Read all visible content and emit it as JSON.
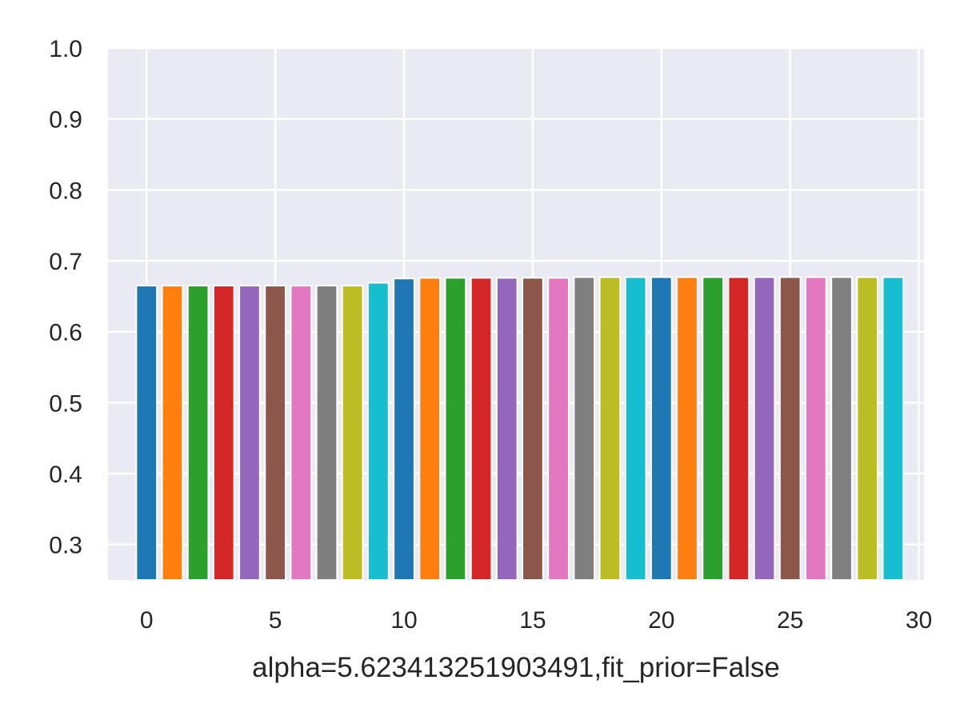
{
  "chart_data": {
    "type": "bar",
    "title": "",
    "xlabel": "alpha=5.623413251903491,fit_prior=False",
    "ylabel": "",
    "x": [
      0,
      1,
      2,
      3,
      4,
      5,
      6,
      7,
      8,
      9,
      10,
      11,
      12,
      13,
      14,
      15,
      16,
      17,
      18,
      19,
      20,
      21,
      22,
      23,
      24,
      25,
      26,
      27,
      28,
      29
    ],
    "values": [
      0.665,
      0.665,
      0.665,
      0.665,
      0.665,
      0.665,
      0.665,
      0.665,
      0.665,
      0.669,
      0.675,
      0.676,
      0.676,
      0.676,
      0.676,
      0.676,
      0.676,
      0.677,
      0.677,
      0.677,
      0.677,
      0.677,
      0.677,
      0.677,
      0.677,
      0.677,
      0.677,
      0.677,
      0.677,
      0.677
    ],
    "xlim": [
      -1.5,
      30.2
    ],
    "ylim": [
      0.25,
      1.0
    ],
    "xticks": [
      0,
      5,
      10,
      15,
      20,
      25,
      30
    ],
    "yticks": [
      0.3,
      0.4,
      0.5,
      0.6,
      0.7,
      0.8,
      0.9,
      1.0
    ],
    "xtick_labels": [
      "0",
      "5",
      "10",
      "15",
      "20",
      "25",
      "30"
    ],
    "ytick_labels": [
      "0.3",
      "0.4",
      "0.5",
      "0.6",
      "0.7",
      "0.8",
      "0.9",
      "1.0"
    ],
    "bar_colors": [
      "#1f77b4",
      "#ff7f0e",
      "#2ca02c",
      "#d62728",
      "#9467bd",
      "#8c564b",
      "#e377c2",
      "#7f7f7f",
      "#bcbd22",
      "#17becf"
    ],
    "plot_background": "#eaeaf2",
    "grid_color": "#ffffff",
    "grid": true,
    "legend": "none"
  }
}
